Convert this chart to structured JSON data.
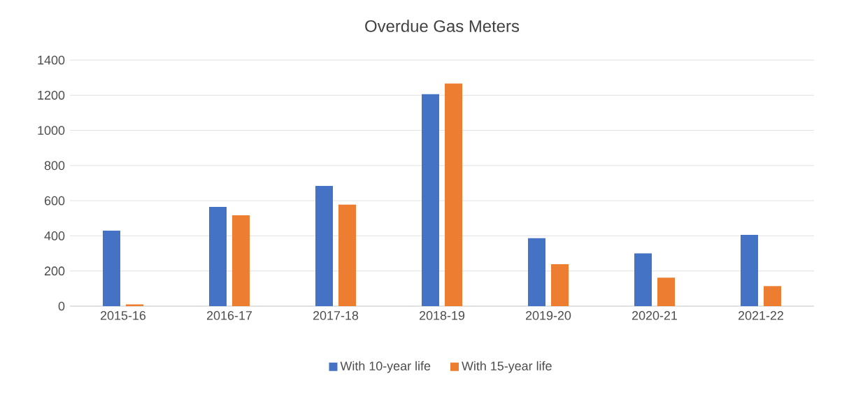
{
  "chart_data": {
    "type": "bar",
    "title": "Overdue Gas Meters",
    "categories": [
      "2015-16",
      "2016-17",
      "2017-18",
      "2018-19",
      "2019-20",
      "2020-21",
      "2021-22"
    ],
    "series": [
      {
        "name": "With 10-year life",
        "color": "#4472c4",
        "values": [
          430,
          565,
          684,
          1206,
          387,
          300,
          406
        ]
      },
      {
        "name": "With 15-year life",
        "color": "#ed7d31",
        "values": [
          10,
          517,
          578,
          1267,
          239,
          162,
          114
        ]
      }
    ],
    "ylim": [
      0,
      1400
    ],
    "yticks": [
      0,
      200,
      400,
      600,
      800,
      1000,
      1200,
      1400
    ],
    "grid": "y",
    "legend": "bottom"
  }
}
